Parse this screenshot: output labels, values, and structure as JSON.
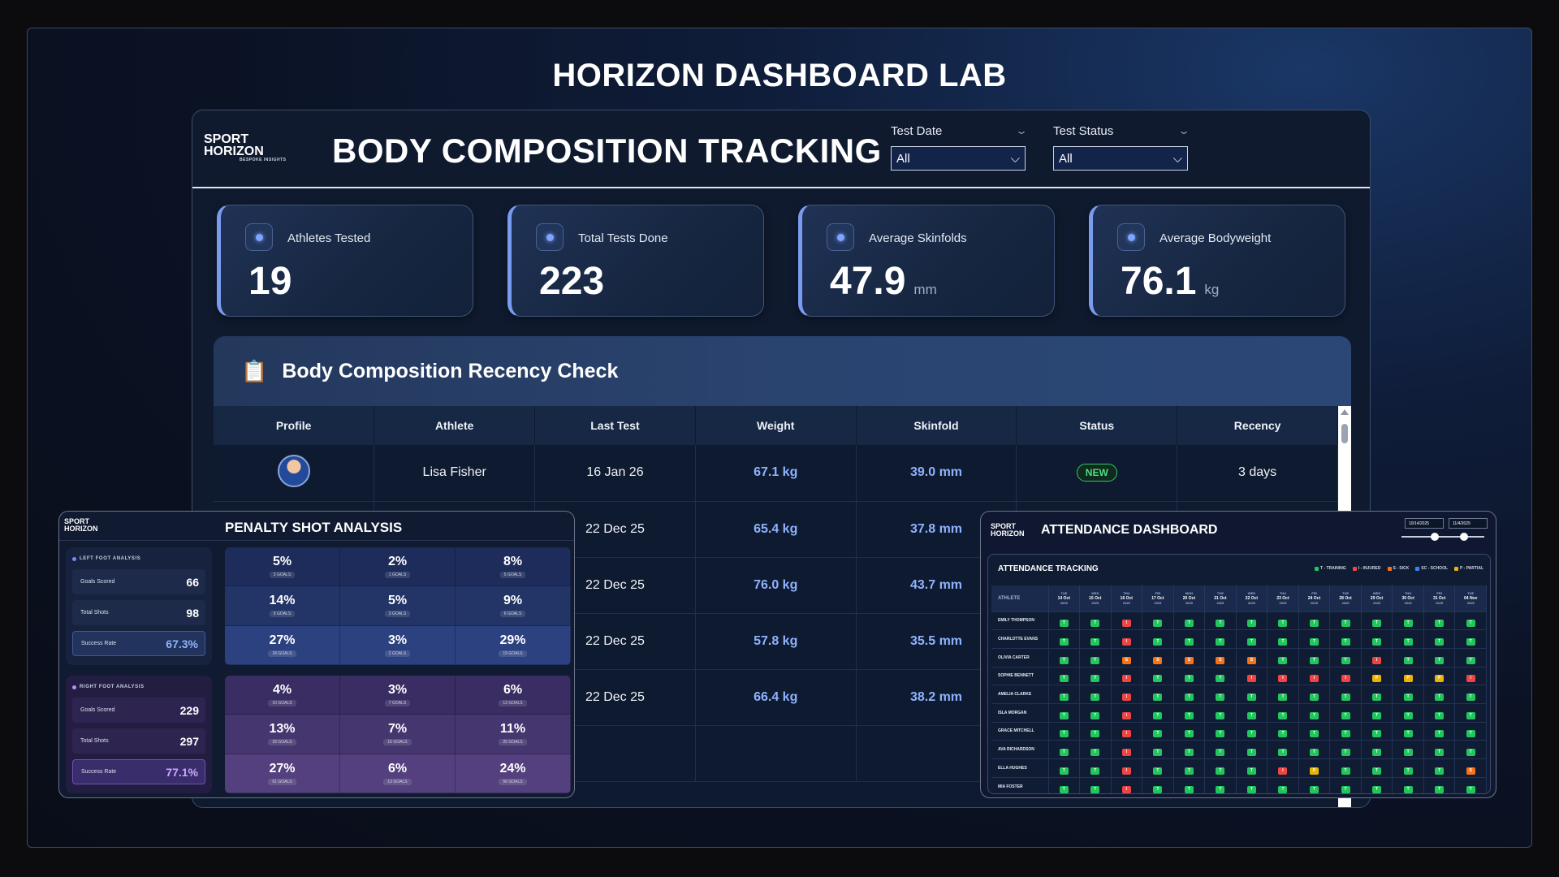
{
  "page_title": "HORIZON DASHBOARD LAB",
  "brand": {
    "line1": "SPORT",
    "line2": "HORIZON",
    "tagline": "BESPOKE INSIGHTS"
  },
  "header": {
    "title": "BODY COMPOSITION TRACKING"
  },
  "filters": [
    {
      "label": "Test Date",
      "value": "All"
    },
    {
      "label": "Test Status",
      "value": "All"
    }
  ],
  "kpis": [
    {
      "label": "Athletes Tested",
      "value": "19",
      "unit": ""
    },
    {
      "label": "Total Tests Done",
      "value": "223",
      "unit": ""
    },
    {
      "label": "Average Skinfolds",
      "value": "47.9",
      "unit": "mm"
    },
    {
      "label": "Average Bodyweight",
      "value": "76.1",
      "unit": "kg"
    }
  ],
  "recency": {
    "title": "Body Composition Recency Check",
    "columns": [
      "Profile",
      "Athlete",
      "Last Test",
      "Weight",
      "Skinfold",
      "Status",
      "Recency"
    ],
    "rows": [
      {
        "athlete": "Lisa Fisher",
        "last_test": "16 Jan 26",
        "weight": "67.1 kg",
        "skinfold": "39.0 mm",
        "status": "NEW",
        "recency": "3 days"
      },
      {
        "athlete": "",
        "last_test": "22 Dec 25",
        "weight": "65.4 kg",
        "skinfold": "37.8 mm",
        "status": "",
        "recency": ""
      },
      {
        "athlete": "",
        "last_test": "22 Dec 25",
        "weight": "76.0 kg",
        "skinfold": "43.7 mm",
        "status": "",
        "recency": ""
      },
      {
        "athlete": "",
        "last_test": "22 Dec 25",
        "weight": "57.8 kg",
        "skinfold": "35.5 mm",
        "status": "",
        "recency": ""
      },
      {
        "athlete": "",
        "last_test": "22 Dec 25",
        "weight": "66.4 kg",
        "skinfold": "38.2 mm",
        "status": "",
        "recency": ""
      },
      {
        "athlete": "",
        "last_test": "",
        "weight": "",
        "skinfold": "",
        "status": "",
        "recency": ""
      }
    ]
  },
  "penalty": {
    "title": "PENALTY SHOT ANALYSIS",
    "left": {
      "title": "LEFT FOOT ANALYSIS",
      "color": "#6d8cff",
      "rows": [
        {
          "label": "Goals Scored",
          "value": "66"
        },
        {
          "label": "Total Shots",
          "value": "98"
        },
        {
          "label": "Success Rate",
          "value": "67.3%"
        }
      ],
      "grid": [
        [
          "5%",
          "3 GOALS"
        ],
        [
          "2%",
          "1 GOALS"
        ],
        [
          "8%",
          "5 GOALS"
        ],
        [
          "14%",
          "9 GOALS"
        ],
        [
          "5%",
          "3 GOALS"
        ],
        [
          "9%",
          "6 GOALS"
        ],
        [
          "27%",
          "18 GOALS"
        ],
        [
          "3%",
          "2 GOALS"
        ],
        [
          "29%",
          "19 GOALS"
        ]
      ]
    },
    "right": {
      "title": "RIGHT FOOT ANALYSIS",
      "color": "#b98cff",
      "rows": [
        {
          "label": "Goals Scored",
          "value": "229"
        },
        {
          "label": "Total Shots",
          "value": "297"
        },
        {
          "label": "Success Rate",
          "value": "77.1%"
        }
      ],
      "grid": [
        [
          "4%",
          "10 GOALS"
        ],
        [
          "3%",
          "7 GOALS"
        ],
        [
          "6%",
          "13 GOALS"
        ],
        [
          "13%",
          "29 GOALS"
        ],
        [
          "7%",
          "15 GOALS"
        ],
        [
          "11%",
          "25 GOALS"
        ],
        [
          "27%",
          "61 GOALS"
        ],
        [
          "6%",
          "13 GOALS"
        ],
        [
          "24%",
          "56 GOALS"
        ]
      ]
    }
  },
  "attendance": {
    "title": "ATTENDANCE DASHBOARD",
    "inner_title": "ATTENDANCE TRACKING",
    "date_from": "10/14/2025",
    "date_to": "11/4/2025",
    "legend": [
      {
        "label": "T - TRAINING",
        "color": "#22c55e"
      },
      {
        "label": "I - INJURED",
        "color": "#ef4444"
      },
      {
        "label": "S - SICK",
        "color": "#f97316"
      },
      {
        "label": "SC - SCHOOL",
        "color": "#3b82f6"
      },
      {
        "label": "P - PARTIAL",
        "color": "#eab308"
      }
    ],
    "athlete_header": "ATHLETE",
    "days": [
      [
        "TUE",
        "14 Oct"
      ],
      [
        "WED",
        "15 Oct"
      ],
      [
        "THU",
        "16 Oct"
      ],
      [
        "FRI",
        "17 Oct"
      ],
      [
        "MON",
        "20 Oct"
      ],
      [
        "TUE",
        "21 Oct"
      ],
      [
        "WED",
        "22 Oct"
      ],
      [
        "THU",
        "23 Oct"
      ],
      [
        "FRI",
        "24 Oct"
      ],
      [
        "TUE",
        "28 Oct"
      ],
      [
        "WED",
        "29 Oct"
      ],
      [
        "THU",
        "30 Oct"
      ],
      [
        "FRI",
        "31 Oct"
      ],
      [
        "TUE",
        "04 Nov"
      ]
    ],
    "year": "2025",
    "rows": [
      {
        "name": "EMILY THOMPSON",
        "codes": [
          "T",
          "T",
          "I",
          "T",
          "T",
          "T",
          "T",
          "T",
          "T",
          "T",
          "T",
          "T",
          "T",
          "T"
        ]
      },
      {
        "name": "CHARLOTTE EVANS",
        "codes": [
          "T",
          "T",
          "I",
          "T",
          "T",
          "T",
          "T",
          "T",
          "T",
          "T",
          "T",
          "T",
          "T",
          "T"
        ]
      },
      {
        "name": "OLIVIA CARTER",
        "codes": [
          "T",
          "T",
          "S",
          "S",
          "S",
          "S",
          "S",
          "T",
          "T",
          "T",
          "I",
          "T",
          "T",
          "T"
        ]
      },
      {
        "name": "SOPHIE BENNETT",
        "codes": [
          "T",
          "T",
          "I",
          "T",
          "T",
          "T",
          "I",
          "I",
          "I",
          "I",
          "P",
          "P",
          "P",
          "I"
        ]
      },
      {
        "name": "AMELIA CLARKE",
        "codes": [
          "T",
          "T",
          "I",
          "T",
          "T",
          "T",
          "T",
          "T",
          "T",
          "T",
          "T",
          "T",
          "T",
          "T"
        ]
      },
      {
        "name": "ISLA MORGAN",
        "codes": [
          "T",
          "T",
          "I",
          "T",
          "T",
          "T",
          "T",
          "T",
          "T",
          "T",
          "T",
          "T",
          "T",
          "T"
        ]
      },
      {
        "name": "GRACE MITCHELL",
        "codes": [
          "T",
          "T",
          "I",
          "T",
          "T",
          "T",
          "T",
          "T",
          "T",
          "T",
          "T",
          "T",
          "T",
          "T"
        ]
      },
      {
        "name": "AVA RICHARDSON",
        "codes": [
          "T",
          "T",
          "I",
          "T",
          "T",
          "T",
          "T",
          "T",
          "T",
          "T",
          "T",
          "T",
          "T",
          "T"
        ]
      },
      {
        "name": "ELLA HUGHES",
        "codes": [
          "T",
          "T",
          "I",
          "T",
          "T",
          "T",
          "T",
          "I",
          "P",
          "T",
          "T",
          "T",
          "T",
          "S"
        ]
      },
      {
        "name": "MIA FOSTER",
        "codes": [
          "T",
          "T",
          "I",
          "T",
          "T",
          "T",
          "T",
          "T",
          "T",
          "T",
          "T",
          "T",
          "T",
          "T"
        ]
      }
    ]
  }
}
